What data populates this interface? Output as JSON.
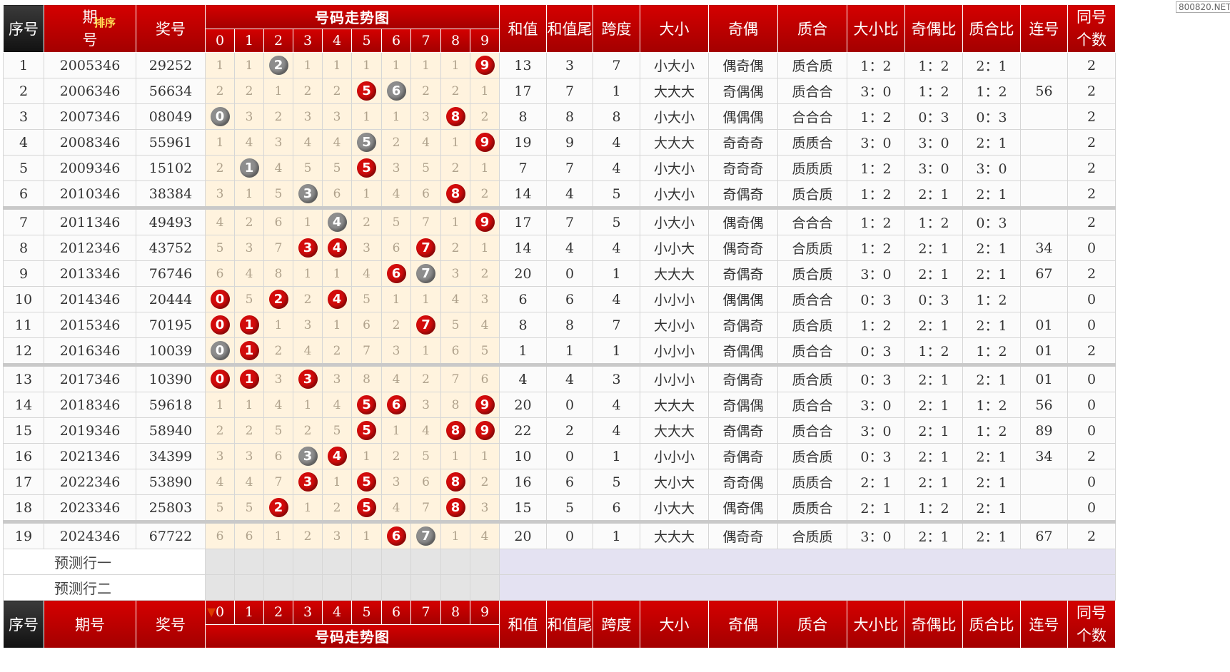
{
  "watermark": "800820.NET",
  "header": {
    "seq": "序号",
    "period": "期号",
    "period_top": "期",
    "period_bottom": "号",
    "sort_label": "排序",
    "prize": "奖号",
    "trend_title": "号码走势图",
    "digits": [
      "0",
      "1",
      "2",
      "3",
      "4",
      "5",
      "6",
      "7",
      "8",
      "9"
    ],
    "sum": "和值",
    "sum_tail": "和值尾",
    "span": "跨度",
    "size": "大小",
    "parity": "奇偶",
    "prime": "质合",
    "size_ratio": "大小比",
    "parity_ratio": "奇偶比",
    "prime_ratio": "质合比",
    "consecutive": "连号",
    "same_top": "同号",
    "same_bottom": "个数"
  },
  "rows": [
    {
      "seq": "1",
      "period": "2005346",
      "prize": "29252",
      "trend": [
        "1",
        "1",
        "2",
        "1",
        "1",
        "1",
        "1",
        "1",
        "1",
        "9"
      ],
      "balls": {
        "2": "grey",
        "9": "red"
      },
      "sum": "13",
      "tail": "3",
      "span": "7",
      "size": "小大小",
      "parity": "偶奇偶",
      "prime": "质合质",
      "sr": "1：2",
      "pr": "1：2",
      "qr": "2：1",
      "cons": "",
      "same": "2"
    },
    {
      "seq": "2",
      "period": "2006346",
      "prize": "56634",
      "trend": [
        "2",
        "2",
        "1",
        "2",
        "2",
        "5",
        "6",
        "2",
        "2",
        "1"
      ],
      "balls": {
        "5": "red",
        "6": "grey"
      },
      "sum": "17",
      "tail": "7",
      "span": "1",
      "size": "大大大",
      "parity": "奇偶偶",
      "prime": "质合合",
      "sr": "3：0",
      "pr": "1：2",
      "qr": "1：2",
      "cons": "56",
      "same": "2"
    },
    {
      "seq": "3",
      "period": "2007346",
      "prize": "08049",
      "trend": [
        "0",
        "3",
        "2",
        "3",
        "3",
        "1",
        "1",
        "3",
        "8",
        "2"
      ],
      "balls": {
        "0": "grey",
        "8": "red"
      },
      "sum": "8",
      "tail": "8",
      "span": "8",
      "size": "小大小",
      "parity": "偶偶偶",
      "prime": "合合合",
      "sr": "1：2",
      "pr": "0：3",
      "qr": "0：3",
      "cons": "",
      "same": "2"
    },
    {
      "seq": "4",
      "period": "2008346",
      "prize": "55961",
      "trend": [
        "1",
        "4",
        "3",
        "4",
        "4",
        "5",
        "2",
        "4",
        "1",
        "9"
      ],
      "balls": {
        "5": "grey",
        "9": "red"
      },
      "sum": "19",
      "tail": "9",
      "span": "4",
      "size": "大大大",
      "parity": "奇奇奇",
      "prime": "质质合",
      "sr": "3：0",
      "pr": "3：0",
      "qr": "2：1",
      "cons": "",
      "same": "2"
    },
    {
      "seq": "5",
      "period": "2009346",
      "prize": "15102",
      "trend": [
        "2",
        "1",
        "4",
        "5",
        "5",
        "5",
        "3",
        "5",
        "2",
        "1"
      ],
      "balls": {
        "1": "grey",
        "5": "red"
      },
      "sum": "7",
      "tail": "7",
      "span": "4",
      "size": "小大小",
      "parity": "奇奇奇",
      "prime": "质质质",
      "sr": "1：2",
      "pr": "3：0",
      "qr": "3：0",
      "cons": "",
      "same": "2"
    },
    {
      "seq": "6",
      "period": "2010346",
      "prize": "38384",
      "trend": [
        "3",
        "1",
        "5",
        "3",
        "6",
        "1",
        "4",
        "6",
        "8",
        "2"
      ],
      "balls": {
        "3": "grey",
        "8": "red"
      },
      "sum": "14",
      "tail": "4",
      "span": "5",
      "size": "小大小",
      "parity": "奇偶奇",
      "prime": "质合质",
      "sr": "1：2",
      "pr": "2：1",
      "qr": "2：1",
      "cons": "",
      "same": "2"
    },
    {
      "seq": "7",
      "period": "2011346",
      "prize": "49493",
      "trend": [
        "4",
        "2",
        "6",
        "1",
        "4",
        "2",
        "5",
        "7",
        "1",
        "9"
      ],
      "balls": {
        "4": "grey",
        "9": "red"
      },
      "sum": "17",
      "tail": "7",
      "span": "5",
      "size": "小大小",
      "parity": "偶奇偶",
      "prime": "合合合",
      "sr": "1：2",
      "pr": "1：2",
      "qr": "0：3",
      "cons": "",
      "same": "2",
      "sep": true
    },
    {
      "seq": "8",
      "period": "2012346",
      "prize": "43752",
      "trend": [
        "5",
        "3",
        "7",
        "3",
        "4",
        "3",
        "6",
        "7",
        "2",
        "1"
      ],
      "balls": {
        "3": "red",
        "4": "red",
        "7": "red"
      },
      "sum": "14",
      "tail": "4",
      "span": "4",
      "size": "小小大",
      "parity": "偶奇奇",
      "prime": "合质质",
      "sr": "1：2",
      "pr": "2：1",
      "qr": "2：1",
      "cons": "34",
      "same": "0"
    },
    {
      "seq": "9",
      "period": "2013346",
      "prize": "76746",
      "trend": [
        "6",
        "4",
        "8",
        "1",
        "1",
        "4",
        "6",
        "7",
        "3",
        "2"
      ],
      "balls": {
        "6": "red",
        "7": "grey"
      },
      "sum": "20",
      "tail": "0",
      "span": "1",
      "size": "大大大",
      "parity": "奇偶奇",
      "prime": "质合质",
      "sr": "3：0",
      "pr": "2：1",
      "qr": "2：1",
      "cons": "67",
      "same": "2"
    },
    {
      "seq": "10",
      "period": "2014346",
      "prize": "20444",
      "trend": [
        "0",
        "5",
        "2",
        "2",
        "4",
        "5",
        "1",
        "1",
        "4",
        "3"
      ],
      "balls": {
        "0": "red",
        "2": "red",
        "4": "red"
      },
      "sum": "6",
      "tail": "6",
      "span": "4",
      "size": "小小小",
      "parity": "偶偶偶",
      "prime": "质合合",
      "sr": "0：3",
      "pr": "0：3",
      "qr": "1：2",
      "cons": "",
      "same": "0"
    },
    {
      "seq": "11",
      "period": "2015346",
      "prize": "70195",
      "trend": [
        "0",
        "1",
        "1",
        "3",
        "1",
        "6",
        "2",
        "7",
        "5",
        "4"
      ],
      "balls": {
        "0": "red",
        "1": "red",
        "7": "red"
      },
      "sum": "8",
      "tail": "8",
      "span": "7",
      "size": "大小小",
      "parity": "奇偶奇",
      "prime": "质合质",
      "sr": "1：2",
      "pr": "2：1",
      "qr": "2：1",
      "cons": "01",
      "same": "0"
    },
    {
      "seq": "12",
      "period": "2016346",
      "prize": "10039",
      "trend": [
        "0",
        "1",
        "2",
        "4",
        "2",
        "7",
        "3",
        "1",
        "6",
        "5"
      ],
      "balls": {
        "0": "grey",
        "1": "red"
      },
      "sum": "1",
      "tail": "1",
      "span": "1",
      "size": "小小小",
      "parity": "奇偶偶",
      "prime": "质合合",
      "sr": "0：3",
      "pr": "1：2",
      "qr": "1：2",
      "cons": "01",
      "same": "2"
    },
    {
      "seq": "13",
      "period": "2017346",
      "prize": "10390",
      "trend": [
        "0",
        "1",
        "3",
        "3",
        "3",
        "8",
        "4",
        "2",
        "7",
        "6"
      ],
      "balls": {
        "0": "red",
        "1": "red",
        "3": "red"
      },
      "sum": "4",
      "tail": "4",
      "span": "3",
      "size": "小小小",
      "parity": "奇偶奇",
      "prime": "质合质",
      "sr": "0：3",
      "pr": "2：1",
      "qr": "2：1",
      "cons": "01",
      "same": "0",
      "sep": true
    },
    {
      "seq": "14",
      "period": "2018346",
      "prize": "59618",
      "trend": [
        "1",
        "1",
        "4",
        "1",
        "4",
        "5",
        "6",
        "3",
        "8",
        "9"
      ],
      "balls": {
        "5": "red",
        "6": "red",
        "9": "red"
      },
      "sum": "20",
      "tail": "0",
      "span": "4",
      "size": "大大大",
      "parity": "奇偶偶",
      "prime": "质合合",
      "sr": "3：0",
      "pr": "2：1",
      "qr": "1：2",
      "cons": "56",
      "same": "0"
    },
    {
      "seq": "15",
      "period": "2019346",
      "prize": "58940",
      "trend": [
        "2",
        "2",
        "5",
        "2",
        "5",
        "5",
        "1",
        "4",
        "8",
        "9"
      ],
      "balls": {
        "5": "red",
        "8": "red",
        "9": "red"
      },
      "sum": "22",
      "tail": "2",
      "span": "4",
      "size": "大大大",
      "parity": "奇偶奇",
      "prime": "质合合",
      "sr": "3：0",
      "pr": "2：1",
      "qr": "1：2",
      "cons": "89",
      "same": "0"
    },
    {
      "seq": "16",
      "period": "2021346",
      "prize": "34399",
      "trend": [
        "3",
        "3",
        "6",
        "3",
        "4",
        "1",
        "2",
        "5",
        "1",
        "1"
      ],
      "balls": {
        "3": "grey",
        "4": "red"
      },
      "sum": "10",
      "tail": "0",
      "span": "1",
      "size": "小小小",
      "parity": "奇偶奇",
      "prime": "质合质",
      "sr": "0：3",
      "pr": "2：1",
      "qr": "2：1",
      "cons": "34",
      "same": "2"
    },
    {
      "seq": "17",
      "period": "2022346",
      "prize": "53890",
      "trend": [
        "4",
        "4",
        "7",
        "3",
        "1",
        "5",
        "3",
        "6",
        "8",
        "2"
      ],
      "balls": {
        "3": "red",
        "5": "red",
        "8": "red"
      },
      "sum": "16",
      "tail": "6",
      "span": "5",
      "size": "大小大",
      "parity": "奇奇偶",
      "prime": "质质合",
      "sr": "2：1",
      "pr": "2：1",
      "qr": "2：1",
      "cons": "",
      "same": "0"
    },
    {
      "seq": "18",
      "period": "2023346",
      "prize": "25803",
      "trend": [
        "5",
        "5",
        "2",
        "1",
        "2",
        "5",
        "4",
        "7",
        "8",
        "3"
      ],
      "balls": {
        "2": "red",
        "5": "red",
        "8": "red"
      },
      "sum": "15",
      "tail": "5",
      "span": "6",
      "size": "小大大",
      "parity": "偶奇偶",
      "prime": "质质合",
      "sr": "2：1",
      "pr": "1：2",
      "qr": "2：1",
      "cons": "",
      "same": "0"
    },
    {
      "seq": "19",
      "period": "2024346",
      "prize": "67722",
      "trend": [
        "6",
        "6",
        "1",
        "2",
        "3",
        "1",
        "6",
        "7",
        "1",
        "4"
      ],
      "balls": {
        "6": "red",
        "7": "grey"
      },
      "sum": "20",
      "tail": "0",
      "span": "1",
      "size": "大大大",
      "parity": "偶奇奇",
      "prime": "合质质",
      "sr": "3：0",
      "pr": "2：1",
      "qr": "2：1",
      "cons": "67",
      "same": "2",
      "sep": true
    }
  ],
  "predictions": [
    "预测行一",
    "预测行二"
  ]
}
